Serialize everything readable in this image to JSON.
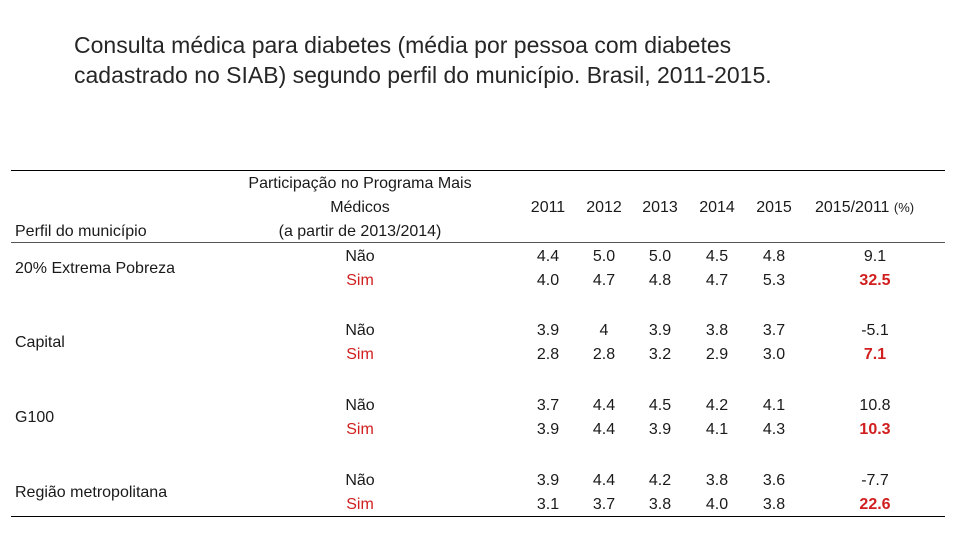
{
  "title_line1": "Consulta médica para diabetes (média por pessoa com diabetes",
  "title_line2": "cadastrado no SIAB) segundo perfil do município. Brasil, 2011-2015.",
  "header": {
    "profile": "Perfil do município",
    "program_line1": "Participação no Programa Mais",
    "program_line2": "Médicos",
    "program_line3": "(a partir de 2013/2014)",
    "years": [
      "2011",
      "2012",
      "2013",
      "2014",
      "2015"
    ],
    "change": "2015/2011",
    "change_unit": "(%)"
  },
  "rows": [
    {
      "profile": "20% Extrema Pobreza",
      "nao_label": "Não",
      "sim_label": "Sim",
      "nao": [
        "4.4",
        "5.0",
        "5.0",
        "4.5",
        "4.8"
      ],
      "nao_change": "9.1",
      "sim": [
        "4.0",
        "4.7",
        "4.8",
        "4.7",
        "5.3"
      ],
      "sim_change": "32.5"
    },
    {
      "profile": "Capital",
      "nao_label": "Não",
      "sim_label": "Sim",
      "nao": [
        "3.9",
        "4",
        "3.9",
        "3.8",
        "3.7"
      ],
      "nao_change": "-5.1",
      "sim": [
        "2.8",
        "2.8",
        "3.2",
        "2.9",
        "3.0"
      ],
      "sim_change": "7.1"
    },
    {
      "profile": "G100",
      "nao_label": "Não",
      "sim_label": "Sim",
      "nao": [
        "3.7",
        "4.4",
        "4.5",
        "4.2",
        "4.1"
      ],
      "nao_change": "10.8",
      "sim": [
        "3.9",
        "4.4",
        "3.9",
        "4.1",
        "4.3"
      ],
      "sim_change": "10.3"
    },
    {
      "profile": "Região metropolitana",
      "nao_label": "Não",
      "sim_label": "Sim",
      "nao": [
        "3.9",
        "4.4",
        "4.2",
        "3.8",
        "3.6"
      ],
      "nao_change": "-7.7",
      "sim": [
        "3.1",
        "3.7",
        "3.8",
        "4.0",
        "3.8"
      ],
      "sim_change": "22.6"
    }
  ],
  "colors": {
    "sim_accent": "#d11e1e",
    "text": "#1a1a1a"
  }
}
